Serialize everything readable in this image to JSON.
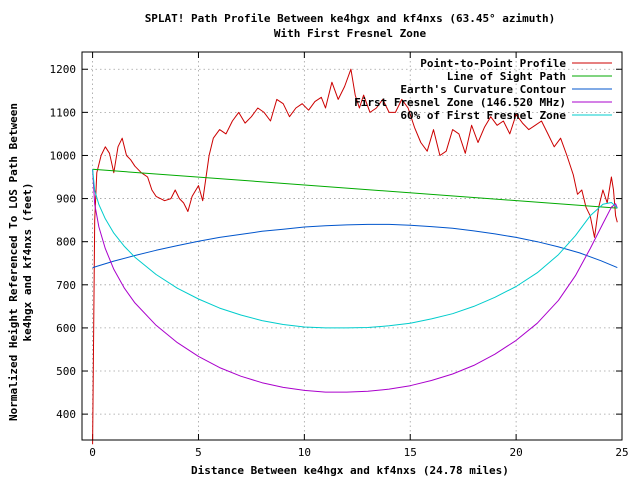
{
  "chart_data": {
    "type": "line",
    "title": [
      "SPLAT! Path Profile Between ke4hgx and kf4nxs (63.45° azimuth)",
      "With First Fresnel Zone"
    ],
    "xlabel": "Distance Between ke4hgx and kf4nxs (24.78 miles)",
    "ylabel": [
      "Normalized Height Referenced To LOS Path Between",
      "ke4hgx and kf4nxs (feet)"
    ],
    "xlim": [
      -0.5,
      25
    ],
    "ylim": [
      340,
      1240
    ],
    "xticks": [
      0,
      5,
      10,
      15,
      20,
      25
    ],
    "yticks": [
      400,
      500,
      600,
      700,
      800,
      900,
      1000,
      1100,
      1200
    ],
    "grid": true,
    "legend_position": "top-right",
    "series": [
      {
        "name": "Point-to-Point Profile",
        "color": "#cc0000",
        "x": [
          0,
          0.1,
          0.2,
          0.4,
          0.6,
          0.8,
          1.0,
          1.2,
          1.4,
          1.6,
          1.8,
          2.0,
          2.3,
          2.6,
          2.8,
          3.0,
          3.2,
          3.4,
          3.7,
          3.9,
          4.1,
          4.3,
          4.5,
          4.7,
          5.0,
          5.2,
          5.5,
          5.7,
          6.0,
          6.3,
          6.6,
          6.9,
          7.2,
          7.5,
          7.8,
          8.1,
          8.4,
          8.7,
          9.0,
          9.3,
          9.6,
          9.9,
          10.2,
          10.5,
          10.8,
          11.0,
          11.3,
          11.6,
          11.9,
          12.2,
          12.4,
          12.6,
          12.8,
          13.1,
          13.4,
          13.7,
          14.0,
          14.3,
          14.6,
          14.9,
          15.2,
          15.5,
          15.8,
          16.1,
          16.4,
          16.7,
          17.0,
          17.3,
          17.6,
          17.9,
          18.2,
          18.5,
          18.8,
          19.1,
          19.4,
          19.7,
          20.0,
          20.3,
          20.6,
          20.9,
          21.2,
          21.5,
          21.8,
          22.1,
          22.4,
          22.7,
          22.9,
          23.1,
          23.3,
          23.5,
          23.7,
          23.9,
          24.1,
          24.3,
          24.5,
          24.6,
          24.7,
          24.78
        ],
        "y": [
          330,
          850,
          960,
          1000,
          1020,
          1005,
          960,
          1020,
          1040,
          1000,
          990,
          975,
          960,
          950,
          920,
          905,
          900,
          895,
          900,
          920,
          900,
          890,
          870,
          905,
          930,
          895,
          1000,
          1040,
          1060,
          1050,
          1080,
          1100,
          1075,
          1090,
          1110,
          1100,
          1080,
          1130,
          1120,
          1090,
          1110,
          1120,
          1105,
          1125,
          1135,
          1110,
          1170,
          1130,
          1160,
          1200,
          1140,
          1110,
          1140,
          1100,
          1110,
          1130,
          1100,
          1100,
          1130,
          1110,
          1065,
          1030,
          1010,
          1060,
          1000,
          1010,
          1060,
          1050,
          1005,
          1070,
          1030,
          1065,
          1090,
          1070,
          1080,
          1050,
          1095,
          1075,
          1060,
          1070,
          1080,
          1050,
          1020,
          1040,
          1000,
          955,
          910,
          920,
          880,
          860,
          810,
          880,
          920,
          890,
          950,
          920,
          860,
          845
        ]
      },
      {
        "name": "Line of Sight Path",
        "color": "#00aa00",
        "x": [
          0,
          24.78
        ],
        "y": [
          968,
          878
        ]
      },
      {
        "name": "Earth's Curvature Contour",
        "color": "#0055cc",
        "x": [
          0,
          1,
          2,
          3,
          4,
          5,
          6,
          7,
          8,
          9,
          10,
          11,
          12,
          13,
          14,
          15,
          16,
          17,
          18,
          19,
          20,
          21,
          22,
          23,
          24,
          24.78
        ],
        "y": [
          740,
          755,
          768,
          780,
          791,
          801,
          810,
          817,
          824,
          829,
          834,
          837,
          839,
          840,
          840,
          838,
          835,
          831,
          825,
          818,
          810,
          800,
          788,
          774,
          756,
          740
        ]
      },
      {
        "name": "First Fresnel Zone (146.520 MHz)",
        "color": "#aa00cc",
        "x": [
          0,
          0.1,
          0.3,
          0.6,
          1,
          1.5,
          2,
          3,
          4,
          5,
          6,
          7,
          8,
          9,
          10,
          11,
          12,
          13,
          14,
          15,
          16,
          17,
          18,
          19,
          20,
          21,
          22,
          22.8,
          23.5,
          24.1,
          24.5,
          24.7,
          24.78
        ],
        "y": [
          968,
          887,
          834,
          784,
          736,
          692,
          658,
          606,
          566,
          534,
          508,
          488,
          473,
          462,
          455,
          451,
          451,
          453,
          458,
          466,
          478,
          493,
          513,
          539,
          571,
          611,
          664,
          721,
          784,
          842,
          880,
          888,
          878
        ]
      },
      {
        "name": "60% of First Fresnel Zone",
        "color": "#00cccc",
        "x": [
          0,
          0.1,
          0.3,
          0.6,
          1,
          1.5,
          2,
          3,
          4,
          5,
          6,
          7,
          8,
          9,
          10,
          11,
          12,
          13,
          14,
          15,
          16,
          17,
          18,
          19,
          20,
          21,
          22,
          22.8,
          23.5,
          24.1,
          24.5,
          24.7,
          24.78
        ],
        "y": [
          968,
          919,
          886,
          853,
          820,
          789,
          764,
          724,
          692,
          667,
          646,
          630,
          617,
          608,
          602,
          600,
          600,
          601,
          605,
          611,
          621,
          633,
          650,
          671,
          696,
          728,
          770,
          814,
          860,
          887,
          891,
          882,
          878
        ]
      }
    ]
  }
}
